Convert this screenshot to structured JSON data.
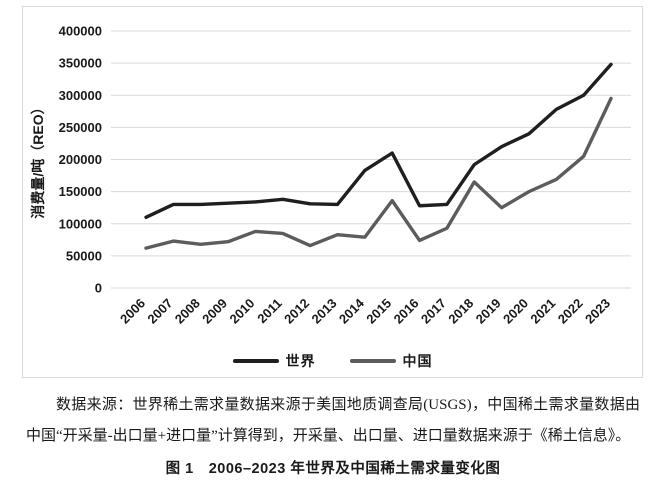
{
  "chart_data": {
    "type": "line",
    "title": "",
    "ylabel": "消费量/吨（REO）",
    "xlabel": "",
    "ylim": [
      0,
      400000
    ],
    "yticks": [
      0,
      50000,
      100000,
      150000,
      200000,
      250000,
      300000,
      350000,
      400000
    ],
    "grid": true,
    "legend_position": "bottom",
    "categories": [
      "2006",
      "2007",
      "2008",
      "2009",
      "2010",
      "2011",
      "2012",
      "2013",
      "2014",
      "2015",
      "2016",
      "2017",
      "2018",
      "2019",
      "2020",
      "2021",
      "2022",
      "2023"
    ],
    "series": [
      {
        "name": "世界",
        "color": "#1f1f1f",
        "values": [
          110000,
          130000,
          130000,
          132000,
          134000,
          138000,
          131000,
          130000,
          183000,
          210000,
          128000,
          130000,
          192000,
          220000,
          240000,
          278000,
          300000,
          348000
        ]
      },
      {
        "name": "中国",
        "color": "#5c5c5c",
        "values": [
          62000,
          73000,
          68000,
          72000,
          88000,
          85000,
          66000,
          83000,
          79000,
          136000,
          74000,
          93000,
          165000,
          125000,
          150000,
          169000,
          205000,
          295000
        ]
      }
    ],
    "colors": {
      "gridline": "#d9d9d9",
      "tick_text": "#1a1a1a"
    }
  },
  "footer": {
    "source_text": "数据来源：世界稀土需求量数据来源于美国地质调查局(USGS)，中国稀土需求量数据由中国“开采量-出口量+进口量”计算得到，开采量、出口量、进口量数据来源于《稀土信息》。",
    "caption": "图 1　2006–2023 年世界及中国稀土需求量变化图"
  }
}
